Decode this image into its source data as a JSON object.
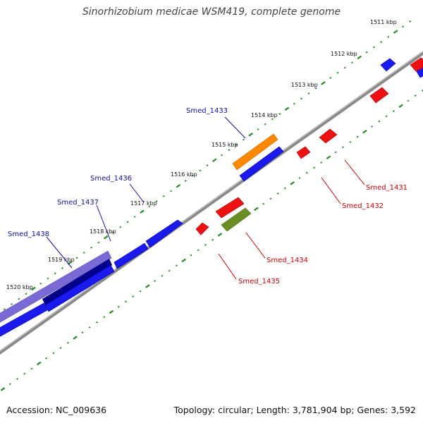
{
  "title": "Sinorhizobium medicae WSM419, complete genome",
  "footer": {
    "accession": "Accession: NC_009636",
    "summary": "Topology: circular; Length: 3,781,904 bp; Genes: 3,592"
  },
  "colors": {
    "forward": "#1a1aee",
    "forward_dark": "#00008b",
    "forward_light": "#7a6ad6",
    "reverse": "#ee1111",
    "orange": "#ff8800",
    "olive": "#6b8e23",
    "backbone": "#888888",
    "ticks": "#228b22",
    "label_forward": "#1010a0",
    "label_reverse": "#cc0000"
  },
  "kbp_ticks": [
    {
      "label": "1511 kbp"
    },
    {
      "label": "1512 kbp"
    },
    {
      "label": "1513 kbp"
    },
    {
      "label": "1514 kbp"
    },
    {
      "label": "1515 kbp"
    },
    {
      "label": "1516 kbp"
    },
    {
      "label": "1517 kbp"
    },
    {
      "label": "1518 kbp"
    },
    {
      "label": "1519 kbp"
    },
    {
      "label": "1520 kbp"
    }
  ],
  "gene_labels": {
    "forward": [
      "Smed_1433",
      "Smed_1436",
      "Smed_1437",
      "Smed_1438"
    ],
    "reverse": [
      "Smed_1431",
      "Smed_1432",
      "Smed_1434",
      "Smed_1435"
    ]
  }
}
